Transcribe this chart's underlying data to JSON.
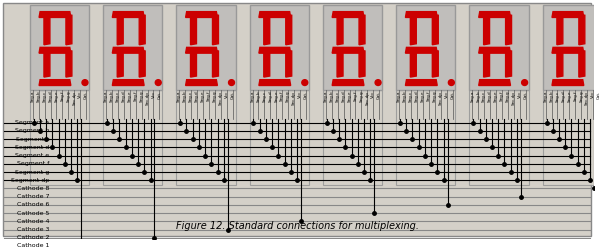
{
  "bg_color": "#d4d0c8",
  "display_bg": "#c0bebb",
  "segment_color": "#cc0000",
  "wire_color": "#000000",
  "cathode_wire_color": "#888888",
  "num_displays": 8,
  "segment_labels": [
    "Segment a",
    "Segment b",
    "Segment c",
    "Segment d",
    "Segment e",
    "Segment f",
    "Segment g",
    "Segment dp"
  ],
  "cathode_labels": [
    "Cathode 8",
    "Cathode 7",
    "Cathode 6",
    "Cathode 5",
    "Cathode 4",
    "Cathode 3",
    "Cathode 2",
    "Cathode 1"
  ],
  "title": "Figure 12. Standard connections for multiplexing.",
  "fig_width": 6.0,
  "fig_height": 2.47,
  "fig_dpi": 100
}
